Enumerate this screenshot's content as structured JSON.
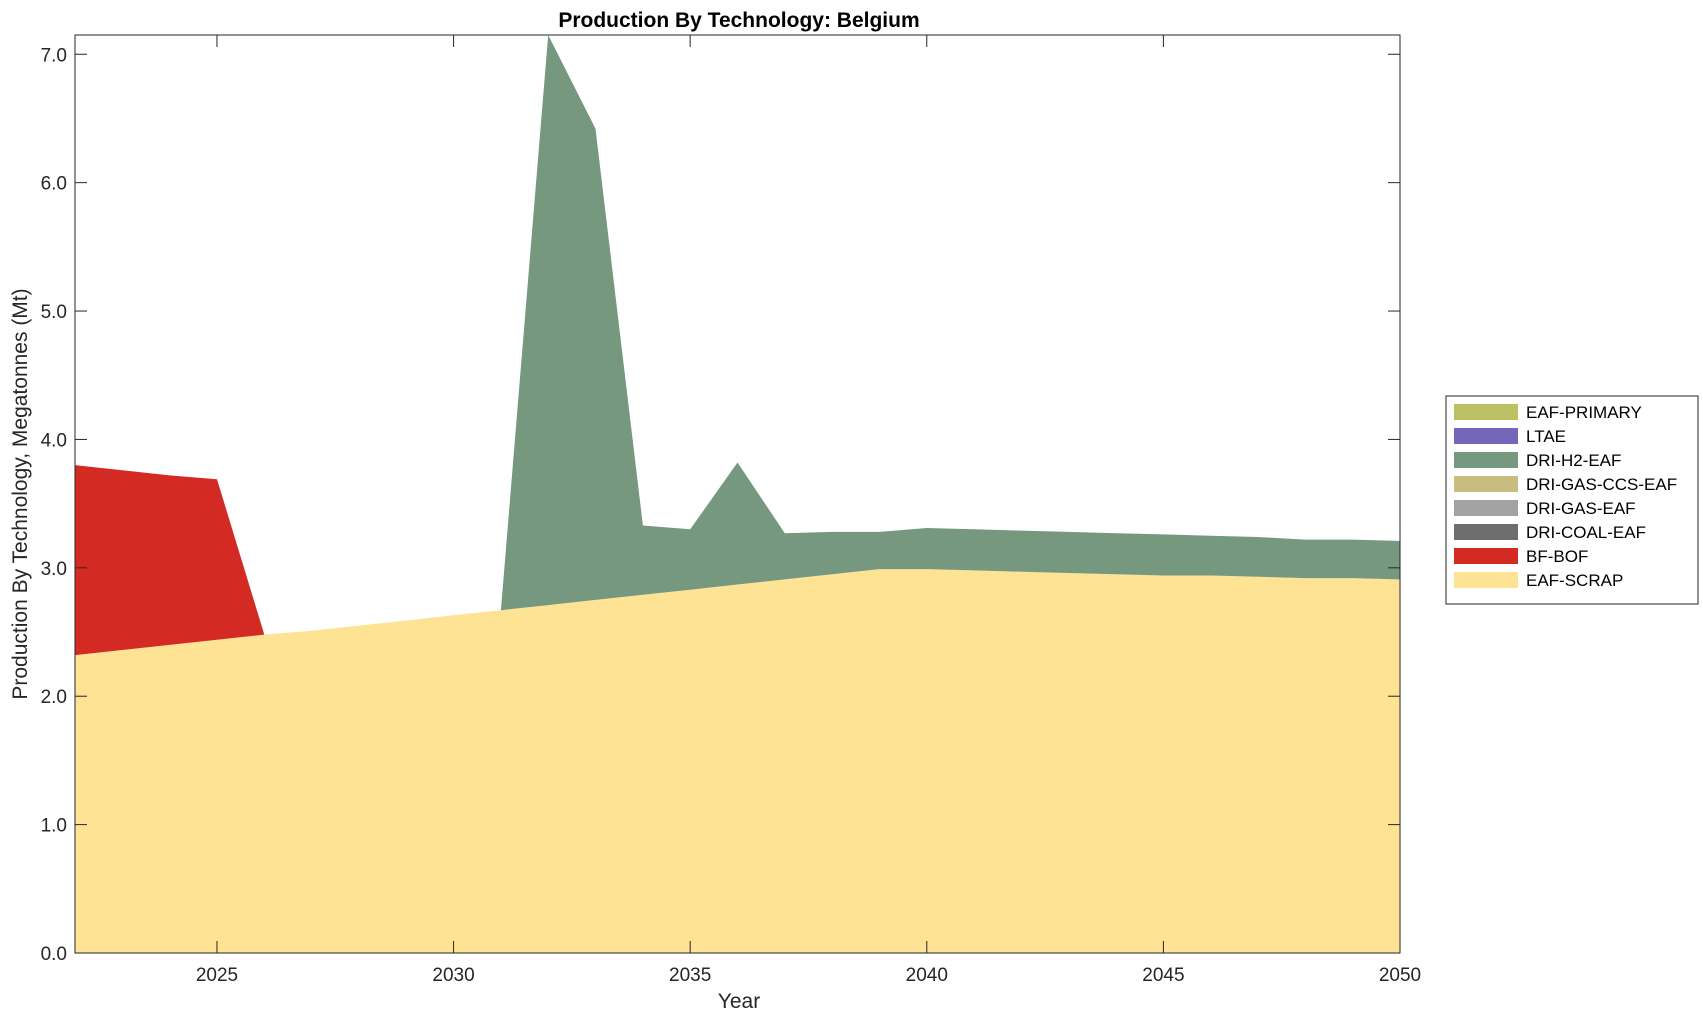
{
  "chart_data": {
    "type": "area",
    "stacked": true,
    "title": "Production By Technology: Belgium",
    "xlabel": "Year",
    "ylabel": "Production By Technology, Megatonnes (Mt)",
    "xlim": [
      2022,
      2050
    ],
    "ylim": [
      0,
      7.15
    ],
    "xticks": [
      "2025",
      "2030",
      "2035",
      "2040",
      "2045",
      "2050"
    ],
    "yticks": [
      "0.0",
      "1.0",
      "2.0",
      "3.0",
      "4.0",
      "5.0",
      "6.0",
      "7.0"
    ],
    "legend_position": "right",
    "grid": false,
    "x": [
      2022,
      2023,
      2024,
      2025,
      2026,
      2027,
      2028,
      2029,
      2030,
      2031,
      2032,
      2033,
      2034,
      2035,
      2036,
      2037,
      2038,
      2039,
      2040,
      2041,
      2042,
      2043,
      2044,
      2045,
      2046,
      2047,
      2048,
      2049,
      2050
    ],
    "series": [
      {
        "name": "EAF-SCRAP",
        "color": "#FDE393",
        "values": [
          2.32,
          2.36,
          2.4,
          2.44,
          2.48,
          2.51,
          2.55,
          2.59,
          2.63,
          2.67,
          2.71,
          2.75,
          2.79,
          2.83,
          2.87,
          2.91,
          2.95,
          2.99,
          2.99,
          2.98,
          2.97,
          2.96,
          2.95,
          2.94,
          2.94,
          2.93,
          2.92,
          2.92,
          2.91
        ]
      },
      {
        "name": "BF-BOF",
        "color": "#D32B24",
        "values": [
          1.48,
          1.4,
          1.32,
          1.25,
          0,
          0,
          0,
          0,
          0,
          0,
          0,
          0,
          0,
          0,
          0,
          0,
          0,
          0,
          0,
          0,
          0,
          0,
          0,
          0,
          0,
          0,
          0,
          0,
          0
        ]
      },
      {
        "name": "DRI-COAL-EAF",
        "color": "#6E6E6E",
        "values": [
          0,
          0,
          0,
          0,
          0,
          0,
          0,
          0,
          0,
          0,
          0,
          0,
          0,
          0,
          0,
          0,
          0,
          0,
          0,
          0,
          0,
          0,
          0,
          0,
          0,
          0,
          0,
          0,
          0
        ]
      },
      {
        "name": "DRI-GAS-EAF",
        "color": "#A2A2A2",
        "values": [
          0,
          0,
          0,
          0,
          0,
          0,
          0,
          0,
          0,
          0,
          0,
          0,
          0,
          0,
          0,
          0,
          0,
          0,
          0,
          0,
          0,
          0,
          0,
          0,
          0,
          0,
          0,
          0,
          0
        ]
      },
      {
        "name": "DRI-GAS-CCS-EAF",
        "color": "#C6BD7E",
        "values": [
          0,
          0,
          0,
          0,
          0,
          0,
          0,
          0,
          0,
          0,
          0,
          0,
          0,
          0,
          0,
          0,
          0,
          0,
          0,
          0,
          0,
          0,
          0,
          0,
          0,
          0,
          0,
          0,
          0
        ]
      },
      {
        "name": "DRI-H2-EAF",
        "color": "#76987E",
        "values": [
          0,
          0,
          0,
          0,
          0,
          0,
          0,
          0,
          0,
          0,
          4.44,
          3.67,
          0.54,
          0.47,
          0.95,
          0.36,
          0.33,
          0.29,
          0.32,
          0.32,
          0.32,
          0.32,
          0.32,
          0.32,
          0.31,
          0.31,
          0.3,
          0.3,
          0.3
        ]
      },
      {
        "name": "LTAE",
        "color": "#7565BB",
        "values": [
          0,
          0,
          0,
          0,
          0,
          0,
          0,
          0,
          0,
          0,
          0,
          0,
          0,
          0,
          0,
          0,
          0,
          0,
          0,
          0,
          0,
          0,
          0,
          0,
          0,
          0,
          0,
          0,
          0
        ]
      },
      {
        "name": "EAF-PRIMARY",
        "color": "#BCC263",
        "values": [
          0,
          0,
          0,
          0,
          0,
          0,
          0,
          0,
          0,
          0,
          0,
          0,
          0,
          0,
          0,
          0,
          0,
          0,
          0,
          0,
          0,
          0,
          0,
          0,
          0,
          0,
          0,
          0,
          0
        ]
      }
    ],
    "legend_order": [
      "EAF-PRIMARY",
      "LTAE",
      "DRI-H2-EAF",
      "DRI-GAS-CCS-EAF",
      "DRI-GAS-EAF",
      "DRI-COAL-EAF",
      "BF-BOF",
      "EAF-SCRAP"
    ]
  }
}
